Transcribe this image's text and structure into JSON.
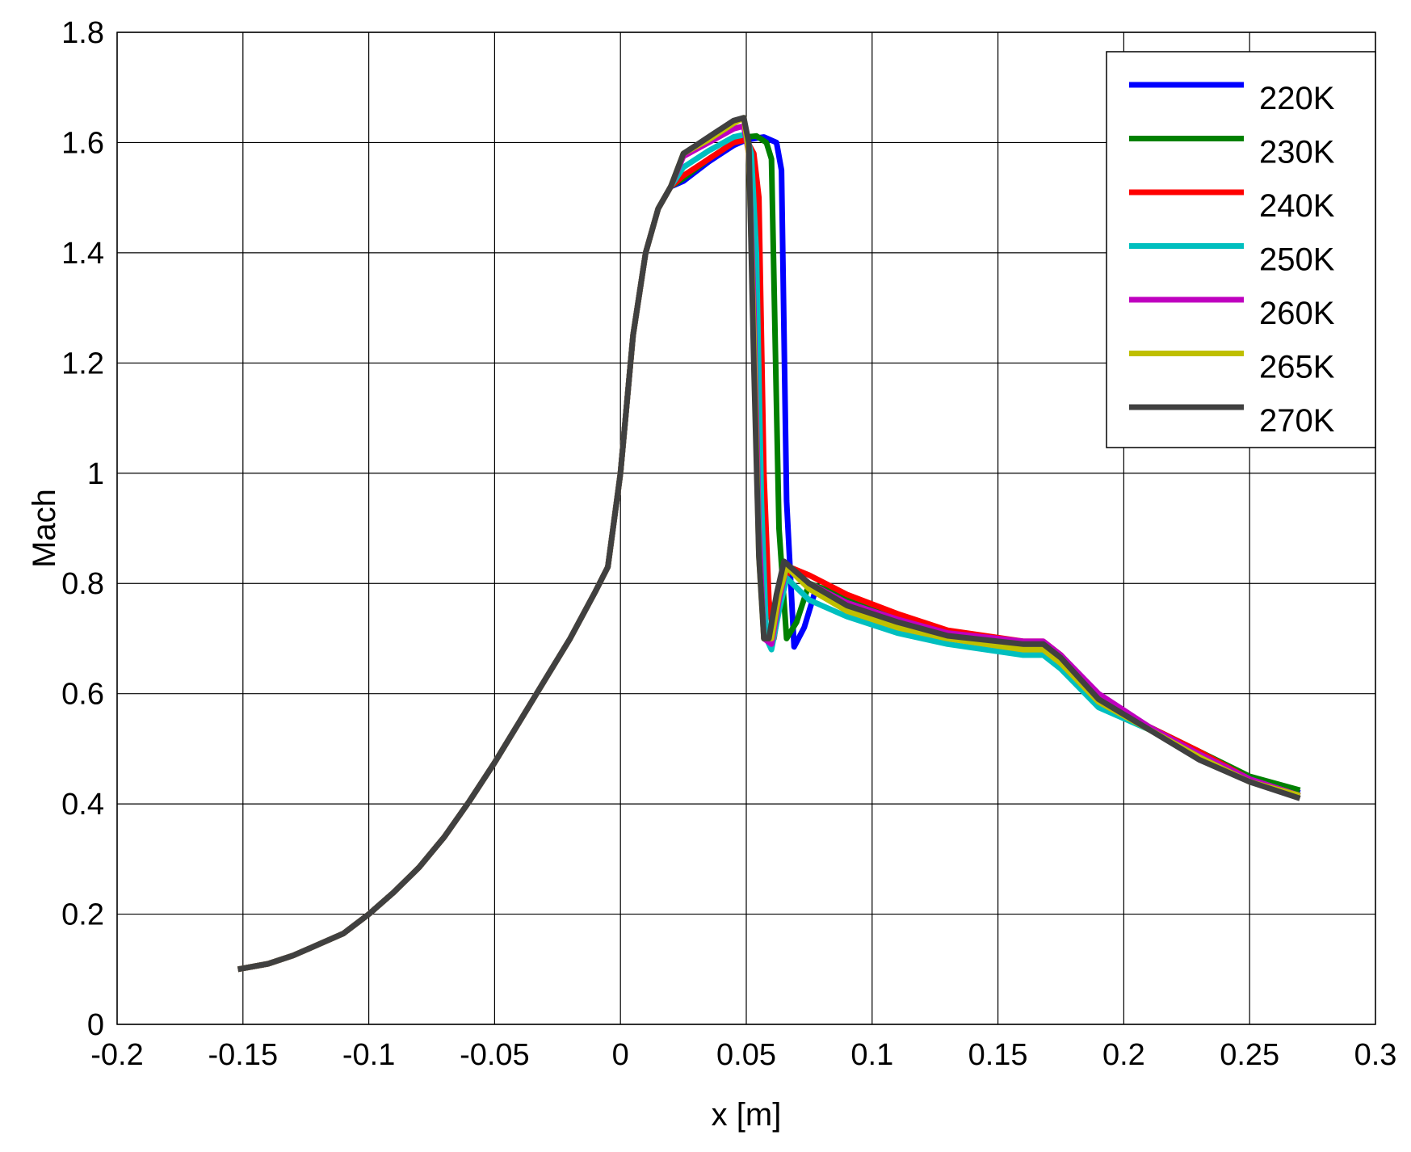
{
  "chart_data": {
    "type": "line",
    "title": "",
    "xlabel": "x [m]",
    "ylabel": "Mach",
    "xlim": [
      -0.2,
      0.3
    ],
    "ylim": [
      0,
      1.8
    ],
    "xticks": [
      -0.2,
      -0.15,
      -0.1,
      -0.05,
      0,
      0.05,
      0.1,
      0.15,
      0.2,
      0.25,
      0.3
    ],
    "xtick_labels": [
      "-0.2",
      "-0.15",
      "-0.1",
      "-0.05",
      "0",
      "0.05",
      "0.1",
      "0.15",
      "0.2",
      "0.25",
      "0.3"
    ],
    "yticks": [
      0,
      0.2,
      0.4,
      0.6,
      0.8,
      1,
      1.2,
      1.4,
      1.6,
      1.8
    ],
    "ytick_labels": [
      "0",
      "0.2",
      "0.4",
      "0.6",
      "0.8",
      "1",
      "1.2",
      "1.4",
      "1.6",
      "1.8"
    ],
    "grid": true,
    "legend_position": "top-right",
    "common_x": [
      -0.152,
      -0.14,
      -0.13,
      -0.12,
      -0.11,
      -0.1,
      -0.09,
      -0.08,
      -0.07,
      -0.06,
      -0.05,
      -0.04,
      -0.03,
      -0.02,
      -0.01,
      -0.005,
      0,
      0.005,
      0.01,
      0.015,
      0.02
    ],
    "common_y": [
      0.1,
      0.11,
      0.125,
      0.145,
      0.165,
      0.2,
      0.24,
      0.285,
      0.34,
      0.405,
      0.475,
      0.55,
      0.625,
      0.7,
      0.785,
      0.83,
      1.0,
      1.25,
      1.4,
      1.48,
      1.52
    ],
    "series": [
      {
        "name": "220K",
        "color": "#0000ff",
        "x": [
          0.025,
          0.035,
          0.045,
          0.05,
          0.057,
          0.062,
          0.064,
          0.066,
          0.069,
          0.073,
          0.078,
          0.09,
          0.11,
          0.13,
          0.16,
          0.168,
          0.175,
          0.19,
          0.21,
          0.23,
          0.25,
          0.27
        ],
        "y": [
          1.53,
          1.565,
          1.595,
          1.605,
          1.61,
          1.6,
          1.55,
          0.95,
          0.685,
          0.72,
          0.795,
          0.77,
          0.73,
          0.705,
          0.685,
          0.685,
          0.66,
          0.59,
          0.535,
          0.49,
          0.445,
          0.42
        ]
      },
      {
        "name": "230K",
        "color": "#008000",
        "x": [
          0.025,
          0.035,
          0.045,
          0.05,
          0.054,
          0.058,
          0.06,
          0.063,
          0.066,
          0.07,
          0.075,
          0.09,
          0.11,
          0.13,
          0.16,
          0.168,
          0.175,
          0.19,
          0.21,
          0.23,
          0.25,
          0.27
        ],
        "y": [
          1.535,
          1.57,
          1.6,
          1.61,
          1.612,
          1.6,
          1.57,
          0.9,
          0.7,
          0.73,
          0.8,
          0.775,
          0.735,
          0.705,
          0.69,
          0.69,
          0.665,
          0.59,
          0.54,
          0.495,
          0.45,
          0.425
        ]
      },
      {
        "name": "240K",
        "color": "#ff0000",
        "x": [
          0.025,
          0.035,
          0.045,
          0.05,
          0.053,
          0.055,
          0.057,
          0.059,
          0.061,
          0.063,
          0.067,
          0.075,
          0.09,
          0.11,
          0.13,
          0.16,
          0.168,
          0.175,
          0.19,
          0.21,
          0.23,
          0.25,
          0.27
        ],
        "y": [
          1.54,
          1.57,
          1.6,
          1.605,
          1.58,
          1.5,
          1.0,
          0.77,
          0.7,
          0.76,
          0.83,
          0.815,
          0.78,
          0.745,
          0.715,
          0.695,
          0.695,
          0.67,
          0.595,
          0.54,
          0.495,
          0.445,
          0.415
        ]
      },
      {
        "name": "250K",
        "color": "#00bfbf",
        "x": [
          0.025,
          0.035,
          0.045,
          0.05,
          0.052,
          0.054,
          0.056,
          0.058,
          0.06,
          0.063,
          0.066,
          0.075,
          0.09,
          0.11,
          0.13,
          0.16,
          0.168,
          0.175,
          0.19,
          0.21,
          0.23,
          0.25,
          0.27
        ],
        "y": [
          1.555,
          1.585,
          1.61,
          1.615,
          1.58,
          1.4,
          0.95,
          0.7,
          0.68,
          0.75,
          0.81,
          0.77,
          0.74,
          0.71,
          0.69,
          0.67,
          0.67,
          0.645,
          0.575,
          0.535,
          0.49,
          0.445,
          0.415
        ]
      },
      {
        "name": "260K",
        "color": "#bf00bf",
        "x": [
          0.025,
          0.035,
          0.045,
          0.049,
          0.051,
          0.053,
          0.055,
          0.057,
          0.06,
          0.063,
          0.066,
          0.075,
          0.09,
          0.11,
          0.13,
          0.16,
          0.168,
          0.175,
          0.19,
          0.21,
          0.23,
          0.25,
          0.27
        ],
        "y": [
          1.575,
          1.6,
          1.625,
          1.63,
          1.58,
          1.3,
          0.9,
          0.7,
          0.69,
          0.77,
          0.83,
          0.8,
          0.765,
          0.735,
          0.71,
          0.695,
          0.695,
          0.67,
          0.6,
          0.54,
          0.49,
          0.445,
          0.415
        ]
      },
      {
        "name": "265K",
        "color": "#bfbf00",
        "x": [
          0.025,
          0.035,
          0.045,
          0.049,
          0.051,
          0.053,
          0.055,
          0.057,
          0.06,
          0.063,
          0.066,
          0.075,
          0.09,
          0.11,
          0.13,
          0.16,
          0.168,
          0.175,
          0.19,
          0.21,
          0.23,
          0.25,
          0.27
        ],
        "y": [
          1.58,
          1.605,
          1.635,
          1.645,
          1.58,
          1.25,
          0.85,
          0.7,
          0.7,
          0.78,
          0.83,
          0.79,
          0.75,
          0.72,
          0.7,
          0.68,
          0.68,
          0.655,
          0.585,
          0.535,
          0.485,
          0.44,
          0.415
        ]
      },
      {
        "name": "270K",
        "color": "#404040",
        "x": [
          0.025,
          0.03,
          0.035,
          0.04,
          0.045,
          0.049,
          0.051,
          0.053,
          0.055,
          0.057,
          0.059,
          0.062,
          0.065,
          0.075,
          0.09,
          0.11,
          0.13,
          0.16,
          0.168,
          0.175,
          0.19,
          0.21,
          0.23,
          0.25,
          0.27
        ],
        "y": [
          1.58,
          1.595,
          1.61,
          1.625,
          1.64,
          1.645,
          1.6,
          1.2,
          0.85,
          0.7,
          0.7,
          0.78,
          0.84,
          0.8,
          0.76,
          0.73,
          0.705,
          0.69,
          0.69,
          0.665,
          0.59,
          0.535,
          0.48,
          0.44,
          0.41
        ]
      }
    ]
  }
}
